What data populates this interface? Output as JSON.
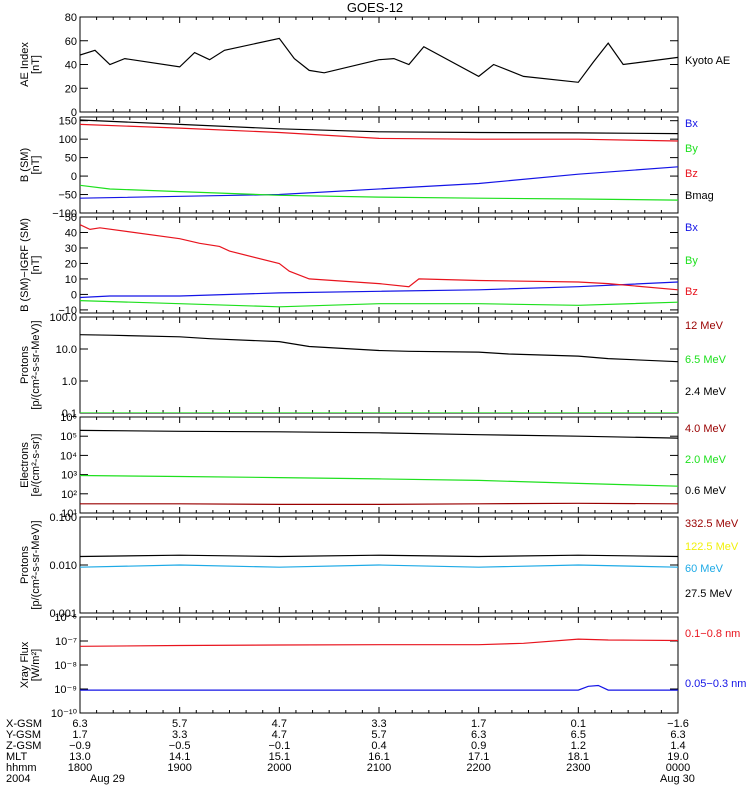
{
  "title": "GOES-12",
  "colors": {
    "black": "#000000",
    "red": "#e8141e",
    "green": "#1ee01e",
    "blue": "#1414e6",
    "darkred": "#990000",
    "cyan": "#1eaae6",
    "yellow": "#f0f00a"
  },
  "chart_data": [
    {
      "type": "line",
      "scale": "linear",
      "ylabel": [
        "AE Index",
        "[nT]"
      ],
      "ylim": [
        0,
        80
      ],
      "yticks": [
        0,
        20,
        40,
        60,
        80
      ],
      "ytick_labels": [
        "0",
        "20",
        "40",
        "60",
        "80"
      ],
      "xlim": [
        1800,
        2400
      ],
      "series": [
        {
          "name": "Kyoto AE",
          "color": "black",
          "x": [
            1800,
            1815,
            1830,
            1845,
            1900,
            1915,
            1930,
            1945,
            2000,
            2015,
            2030,
            2045,
            2100,
            2115,
            2130,
            2145,
            2200,
            2215,
            2230,
            2245,
            2300,
            2315,
            2330,
            2345,
            2400
          ],
          "y": [
            48,
            52,
            40,
            45,
            38,
            50,
            44,
            52,
            62,
            45,
            35,
            33,
            44,
            45,
            40,
            55,
            30,
            40,
            35,
            30,
            25,
            42,
            58,
            40,
            46
          ]
        }
      ]
    },
    {
      "type": "line",
      "scale": "linear",
      "ylabel": [
        "B (SM)",
        "[nT]"
      ],
      "ylim": [
        -100,
        160
      ],
      "yticks": [
        -100,
        -50,
        0,
        50,
        100,
        150
      ],
      "ytick_labels": [
        "−100",
        "−50",
        "0",
        "50",
        "100",
        "150"
      ],
      "xlim": [
        1800,
        2400
      ],
      "series": [
        {
          "name": "Bx",
          "color": "blue",
          "x": [
            1800,
            2000,
            2200,
            2300,
            2400
          ],
          "y": [
            -60,
            -50,
            -20,
            5,
            25
          ]
        },
        {
          "name": "By",
          "color": "green",
          "x": [
            1800,
            1830,
            1900,
            2000,
            2100,
            2200,
            2300,
            2400
          ],
          "y": [
            -25,
            -35,
            -42,
            -52,
            -57,
            -60,
            -62,
            -65
          ]
        },
        {
          "name": "Bz",
          "color": "red",
          "x": [
            1800,
            1900,
            2000,
            2100,
            2200,
            2300,
            2400
          ],
          "y": [
            140,
            130,
            118,
            102,
            100,
            100,
            95
          ]
        },
        {
          "name": "Bmag",
          "color": "black",
          "x": [
            1800,
            1900,
            2000,
            2100,
            2200,
            2300,
            2400
          ],
          "y": [
            152,
            140,
            128,
            120,
            118,
            117,
            115
          ]
        }
      ]
    },
    {
      "type": "line",
      "scale": "linear",
      "ylabel": [
        "B (SM)−IGRF (SM)",
        "[nT]"
      ],
      "ylim": [
        -12,
        50
      ],
      "yticks": [
        -10,
        0,
        10,
        20,
        30,
        40,
        50
      ],
      "ytick_labels": [
        "−10",
        "0",
        "10",
        "20",
        "30",
        "40",
        "50"
      ],
      "xlim": [
        1800,
        2400
      ],
      "series": [
        {
          "name": "Bx",
          "color": "blue",
          "x": [
            1800,
            1830,
            1900,
            2000,
            2100,
            2200,
            2300,
            2400
          ],
          "y": [
            -2,
            -1,
            -1,
            1,
            2,
            3,
            5,
            8
          ]
        },
        {
          "name": "By",
          "color": "green",
          "x": [
            1800,
            1900,
            2000,
            2100,
            2200,
            2300,
            2400
          ],
          "y": [
            -4,
            -6,
            -8,
            -6,
            -6,
            -7,
            -5
          ]
        },
        {
          "name": "Bz",
          "color": "red",
          "x": [
            1800,
            1810,
            1820,
            1900,
            1920,
            1940,
            1950,
            2000,
            2010,
            2030,
            2100,
            2130,
            2140,
            2200,
            2300,
            2330,
            2400
          ],
          "y": [
            45,
            42,
            43,
            36,
            33,
            31,
            28,
            20,
            15,
            10,
            7,
            5,
            10,
            9,
            8,
            7,
            3
          ]
        }
      ]
    },
    {
      "type": "line",
      "scale": "log",
      "ylabel": [
        "Protons",
        "[p/(cm²-s-sr-MeV)]"
      ],
      "ylim": [
        0.1,
        100
      ],
      "yticks": [
        0.1,
        1,
        10,
        100
      ],
      "ytick_labels": [
        "0.1",
        "1.0",
        "10.0",
        "100.0"
      ],
      "xlim": [
        1800,
        2400
      ],
      "series": [
        {
          "name": "12 MeV",
          "color": "darkred",
          "x": [],
          "y": []
        },
        {
          "name": "6.5 MeV",
          "color": "green",
          "x": [
            1800,
            1900,
            2000,
            2100,
            2200,
            2300,
            2400
          ],
          "y": [
            0.1,
            0.1,
            0.1,
            0.1,
            0.1,
            0.1,
            0.1
          ]
        },
        {
          "name": "2.4 MeV",
          "color": "black",
          "x": [
            1800,
            1830,
            1900,
            1930,
            2000,
            2030,
            2100,
            2130,
            2200,
            2230,
            2300,
            2330,
            2400
          ],
          "y": [
            28,
            27,
            24,
            21,
            17,
            12,
            9,
            8.5,
            8,
            7,
            6,
            5,
            4
          ]
        }
      ]
    },
    {
      "type": "line",
      "scale": "log",
      "ylabel": [
        "Electrons",
        "[e/(cm²-s-sr)]"
      ],
      "ylim": [
        10,
        1000000
      ],
      "yticks": [
        10,
        100,
        1000,
        10000,
        100000,
        1000000
      ],
      "ytick_labels": [
        "10¹",
        "10²",
        "10³",
        "10⁴",
        "10⁵",
        "10⁶"
      ],
      "xlim": [
        1800,
        2400
      ],
      "series": [
        {
          "name": "4.0 MeV",
          "color": "darkred",
          "x": [
            1800,
            1900,
            2000,
            2100,
            2200,
            2300,
            2400
          ],
          "y": [
            30,
            30,
            28,
            28,
            30,
            32,
            30
          ]
        },
        {
          "name": "2.0 MeV",
          "color": "green",
          "x": [
            1800,
            1900,
            2000,
            2100,
            2200,
            2300,
            2400
          ],
          "y": [
            900,
            800,
            700,
            600,
            500,
            350,
            250
          ]
        },
        {
          "name": "0.6 MeV",
          "color": "black",
          "x": [
            1800,
            1900,
            2000,
            2100,
            2200,
            2300,
            2400
          ],
          "y": [
            200000,
            180000,
            170000,
            150000,
            120000,
            100000,
            80000
          ]
        }
      ]
    },
    {
      "type": "line",
      "scale": "log",
      "ylabel": [
        "Protons",
        "[p/(cm²-s-sr-MeV)]"
      ],
      "ylim": [
        0.001,
        0.1
      ],
      "yticks": [
        0.001,
        0.01,
        0.1
      ],
      "ytick_labels": [
        "0.001",
        "0.010",
        "0.100"
      ],
      "xlim": [
        1800,
        2400
      ],
      "series": [
        {
          "name": "332.5 MeV",
          "color": "darkred",
          "x": [],
          "y": []
        },
        {
          "name": "122.5 MeV",
          "color": "yellow",
          "x": [],
          "y": []
        },
        {
          "name": "60 MeV",
          "color": "cyan",
          "x": [
            1800,
            1900,
            2000,
            2100,
            2200,
            2300,
            2400
          ],
          "y": [
            0.009,
            0.01,
            0.009,
            0.01,
            0.009,
            0.01,
            0.009
          ]
        },
        {
          "name": "27.5 MeV",
          "color": "black",
          "x": [
            1800,
            1900,
            2000,
            2100,
            2200,
            2300,
            2400
          ],
          "y": [
            0.015,
            0.016,
            0.015,
            0.016,
            0.015,
            0.016,
            0.015
          ]
        }
      ]
    },
    {
      "type": "line",
      "scale": "log",
      "ylabel": [
        "Xray Flux",
        "[W/m²]"
      ],
      "ylim": [
        1e-10,
        1e-06
      ],
      "yticks": [
        1e-10,
        1e-09,
        1e-08,
        1e-07,
        1e-06
      ],
      "ytick_labels": [
        "10⁻¹⁰",
        "10⁻⁹",
        "10⁻⁸",
        "10⁻⁷",
        "10⁻⁶"
      ],
      "xlim": [
        1800,
        2400
      ],
      "series": [
        {
          "name": "0.1−0.8 nm",
          "color": "red",
          "x": [
            1800,
            1900,
            2000,
            2100,
            2200,
            2245,
            2300,
            2330,
            2400
          ],
          "y": [
            6e-08,
            6.5e-08,
            6.8e-08,
            7e-08,
            7e-08,
            8e-08,
            1.2e-07,
            1.1e-07,
            1.05e-07
          ]
        },
        {
          "name": "0.05−0.3 nm",
          "color": "blue",
          "x": [
            1800,
            2000,
            2200,
            2300,
            2310,
            2320,
            2330,
            2400
          ],
          "y": [
            9e-10,
            9e-10,
            9e-10,
            9e-10,
            1.3e-09,
            1.4e-09,
            9e-10,
            9e-10
          ]
        }
      ]
    }
  ],
  "xaxis": {
    "row_labels": [
      "X-GSM",
      "Y-GSM",
      "Z-GSM",
      "MLT",
      "hhmm",
      "2004"
    ],
    "columns": [
      [
        "6.3",
        "1.7",
        "−0.9",
        "13.0",
        "1800",
        "Aug 29"
      ],
      [
        "5.7",
        "3.3",
        "−0.5",
        "14.1",
        "1900",
        ""
      ],
      [
        "4.7",
        "4.7",
        "−0.1",
        "15.1",
        "2000",
        ""
      ],
      [
        "3.3",
        "5.7",
        "0.4",
        "16.1",
        "2100",
        ""
      ],
      [
        "1.7",
        "6.3",
        "0.9",
        "17.1",
        "2200",
        ""
      ],
      [
        "0.1",
        "6.5",
        "1.2",
        "18.1",
        "2300",
        ""
      ],
      [
        "−1.6",
        "6.3",
        "1.4",
        "19.0",
        "0000",
        "Aug 30"
      ]
    ]
  }
}
